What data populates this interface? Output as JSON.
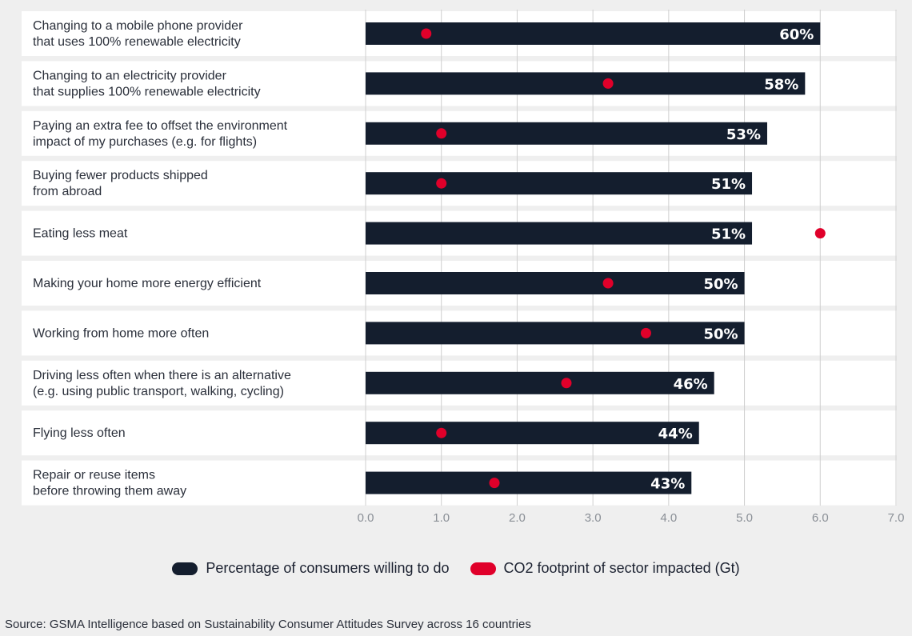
{
  "colors": {
    "bar": "#141e2e",
    "dot": "#e0002a",
    "row_bg": "#ffffff",
    "grid": "#cfcfcf"
  },
  "chart_data": {
    "type": "bar",
    "orientation": "horizontal",
    "categories": [
      [
        "Changing to a mobile phone provider",
        "that uses 100% renewable electricity"
      ],
      [
        "Changing to an electricity provider",
        "that supplies 100% renewable electricity"
      ],
      [
        "Paying an extra fee to offset the environment",
        "impact of my purchases (e.g. for flights)"
      ],
      [
        "Buying fewer products shipped",
        "from abroad"
      ],
      [
        "Eating less meat"
      ],
      [
        "Making your home more energy efficient"
      ],
      [
        "Working from home more often"
      ],
      [
        "Driving less often when there is an alternative",
        "(e.g. using public transport, walking, cycling)"
      ],
      [
        "Flying less often"
      ],
      [
        "Repair or reuse items",
        "before throwing them away"
      ]
    ],
    "series": [
      {
        "name": "Percentage of consumers willing to do",
        "kind": "bar",
        "values": [
          60,
          58,
          53,
          51,
          51,
          50,
          50,
          46,
          44,
          43
        ],
        "labels": [
          "60%",
          "58%",
          "53%",
          "51%",
          "51%",
          "50%",
          "50%",
          "46%",
          "44%",
          "43%"
        ]
      },
      {
        "name": "CO2 footprint of sector impacted (Gt)",
        "kind": "dot",
        "values": [
          0.8,
          3.2,
          1.0,
          1.0,
          6.0,
          3.2,
          3.7,
          2.65,
          1.0,
          1.7
        ]
      }
    ],
    "x_ticks": [
      "0.0",
      "1.0",
      "2.0",
      "3.0",
      "4.0",
      "5.0",
      "6.0",
      "7.0"
    ],
    "xlim": [
      0,
      7
    ],
    "grid": true,
    "legend_position": "bottom"
  },
  "legend": {
    "bar_label": "Percentage of consumers willing to do",
    "dot_label": "CO2 footprint of sector impacted (Gt)"
  },
  "source": "Source: GSMA Intelligence based on Sustainability Consumer Attitudes Survey across 16 countries"
}
